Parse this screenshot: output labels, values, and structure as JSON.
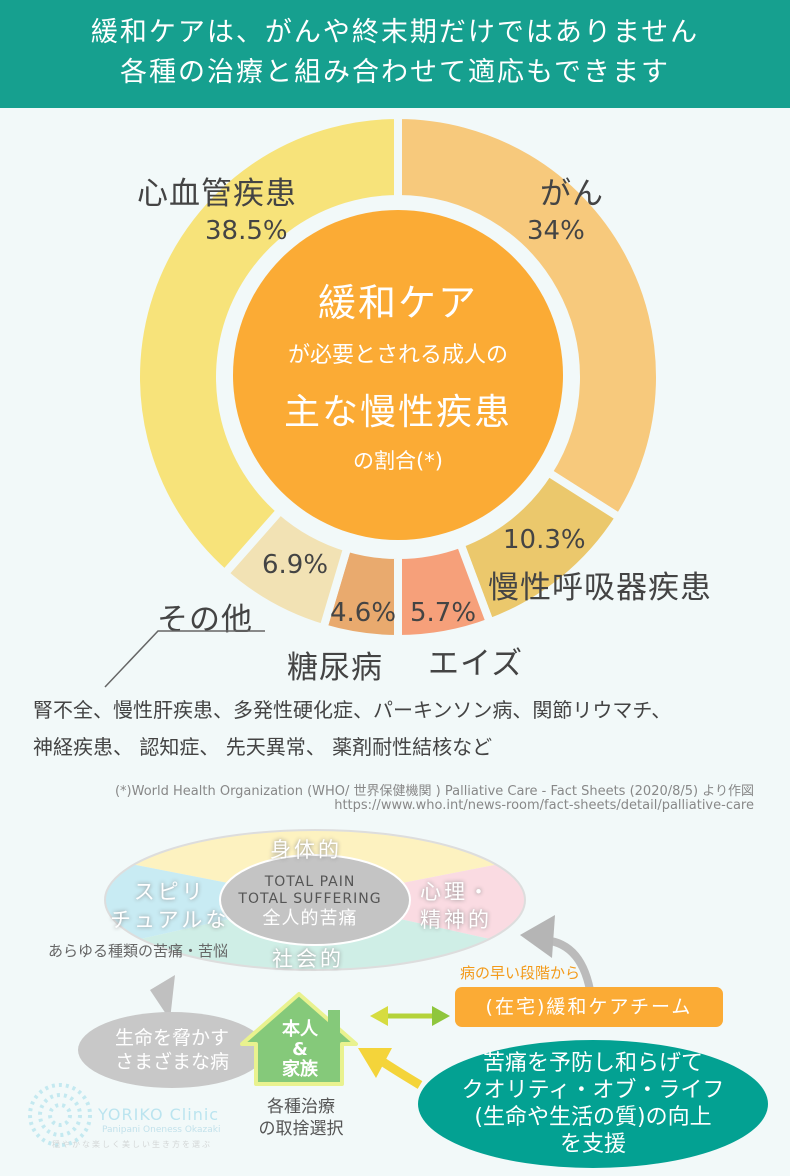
{
  "header": {
    "line1": "緩和ケアは、がんや終末期だけではありません",
    "line2": "各種の治療と組み合わせて適応もできます"
  },
  "center": {
    "title": "緩和ケア",
    "line2": "が必要とされる成人の",
    "line3": "主な慢性疾患",
    "line4": "の割合(*)"
  },
  "chart_data": {
    "type": "pie",
    "donut": true,
    "start": "top, clockwise",
    "slices": [
      {
        "label": "がん",
        "value": 34,
        "pct_label": "34%",
        "color": "#f7c97c"
      },
      {
        "label": "慢性呼吸器疾患",
        "value": 10.3,
        "pct_label": "10.3%",
        "color": "#ebc86c"
      },
      {
        "label": "エイズ",
        "value": 5.7,
        "pct_label": "5.7%",
        "color": "#f6a07a"
      },
      {
        "label": "糖尿病",
        "value": 4.6,
        "pct_label": "4.6%",
        "color": "#e9aa6e"
      },
      {
        "label": "その他",
        "value": 6.9,
        "pct_label": "6.9%",
        "color": "#f2e2b4"
      },
      {
        "label": "心血管疾患",
        "value": 38.5,
        "pct_label": "38.5%",
        "color": "#f7e37a"
      }
    ]
  },
  "other_note": {
    "line1": "腎不全、慢性肝疾患、多発性硬化症、パーキンソン病、関節リウマチ、",
    "line2": "神経疾患、 認知症、 先天異常、 薬剤耐性結核など"
  },
  "source": {
    "line1": "(*)World Health Organization (WHO/ 世界保健機関 ) Palliative Care - Fact Sheets (2020/8/5) より作図",
    "line2": "https://www.who.int/news-room/fact-sheets/detail/palliative-care"
  },
  "total_pain": {
    "physical": "身体的",
    "spiritual1": "スピリ",
    "spiritual2": "チュアルな",
    "psych1": "心理・",
    "psych2": "精神的",
    "social": "社会的",
    "center1": "TOTAL PAIN",
    "center2": "TOTAL SUFFERING",
    "center3": "全人的苦痛",
    "caption": "あらゆる種類の苦痛・苦悩"
  },
  "flow": {
    "early": "病の早い段階から",
    "team": "(在宅)緩和ケアチーム",
    "house1": "本人",
    "house2": "&",
    "house3": "家族",
    "house_caption1": "各種治療",
    "house_caption2": "の取捨選択",
    "disease1": "生命を脅かす",
    "disease2": "さまざまな病",
    "support1": "苦痛を予防し和らげて",
    "support2": "クオリティ・オブ・ライフ",
    "support3": "(生命や生活の質)の向上",
    "support4": "を支援"
  },
  "logo": {
    "name": "YORIKO Clinic",
    "sub": "Panipani Oneness Okazaki",
    "tagline": "穏やかな楽しく美しい生き方を選ぶ"
  }
}
